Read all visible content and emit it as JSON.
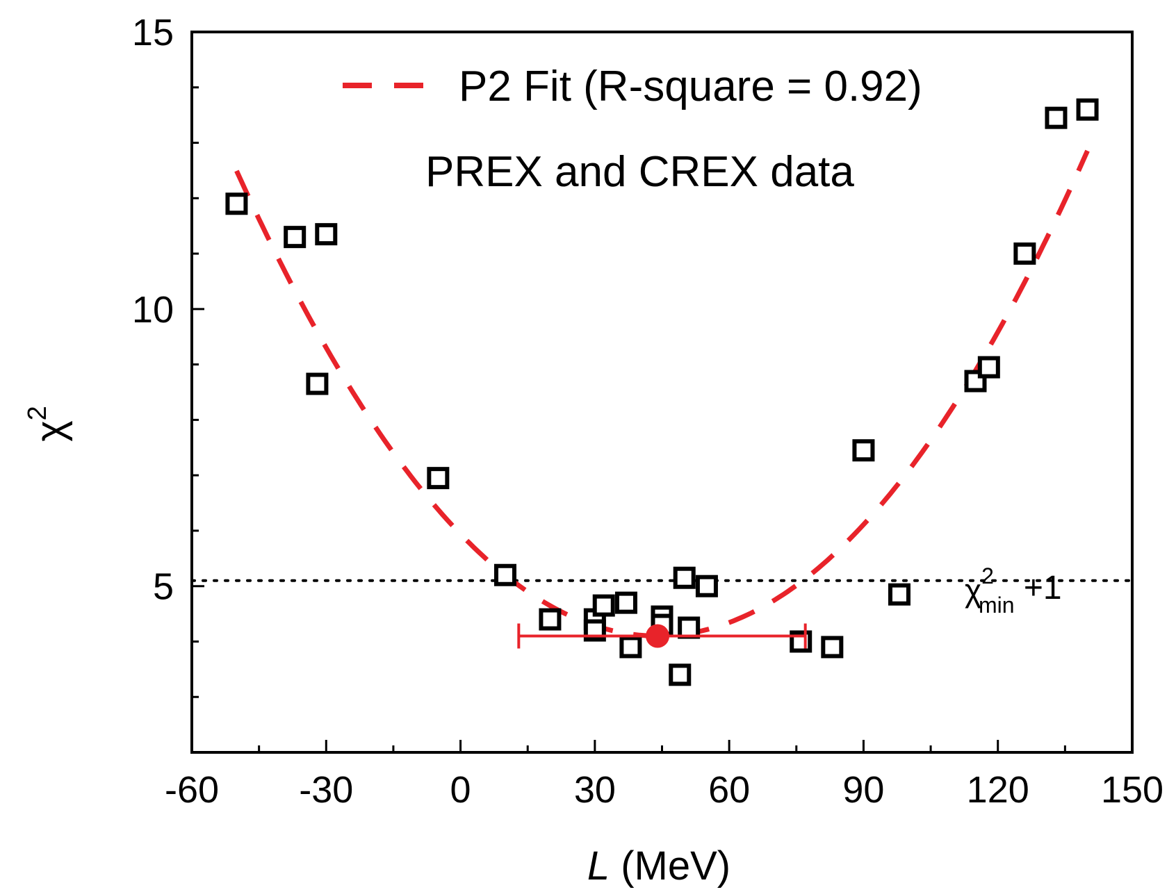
{
  "chart_data": {
    "type": "scatter",
    "xlabel_italic": "L",
    "xlabel_rest": " (MeV)",
    "ylabel_base": "χ",
    "ylabel_sup": "2",
    "xlim": [
      -60,
      150
    ],
    "ylim": [
      2,
      15
    ],
    "x_ticks": [
      -60,
      -30,
      0,
      30,
      60,
      90,
      120,
      150
    ],
    "y_ticks": [
      5,
      10,
      15
    ],
    "legend": {
      "label": "P2 Fit (R-square = 0.92)",
      "position": "top-center"
    },
    "note": "PREX and CREX data",
    "points": [
      {
        "x": -50,
        "y": 11.9
      },
      {
        "x": -37,
        "y": 11.3
      },
      {
        "x": -30,
        "y": 11.35
      },
      {
        "x": -32,
        "y": 8.65
      },
      {
        "x": -5,
        "y": 6.95
      },
      {
        "x": 10,
        "y": 5.2
      },
      {
        "x": 20,
        "y": 4.4
      },
      {
        "x": 30,
        "y": 4.4
      },
      {
        "x": 30,
        "y": 4.2
      },
      {
        "x": 32,
        "y": 4.65
      },
      {
        "x": 37,
        "y": 4.7
      },
      {
        "x": 38,
        "y": 3.9
      },
      {
        "x": 45,
        "y": 4.45
      },
      {
        "x": 45,
        "y": 4.3
      },
      {
        "x": 49,
        "y": 3.4
      },
      {
        "x": 50,
        "y": 5.15
      },
      {
        "x": 51,
        "y": 4.25
      },
      {
        "x": 55,
        "y": 5.0
      },
      {
        "x": 76,
        "y": 4.0
      },
      {
        "x": 83,
        "y": 3.9
      },
      {
        "x": 90,
        "y": 7.45
      },
      {
        "x": 98,
        "y": 4.85
      },
      {
        "x": 115,
        "y": 8.7
      },
      {
        "x": 118,
        "y": 8.95
      },
      {
        "x": 126,
        "y": 11.0
      },
      {
        "x": 133,
        "y": 13.45
      },
      {
        "x": 140,
        "y": 13.6
      }
    ],
    "fit": {
      "vertex_x": 44,
      "vertex_y": 4.1,
      "a": 0.00095,
      "x_range": [
        -50,
        140
      ]
    },
    "best_fit": {
      "x": 44,
      "y": 4.1,
      "xerr_low": 13,
      "xerr_high": 77
    },
    "threshold": {
      "y": 5.1,
      "label_base": "χ",
      "label_sup": "2",
      "label_sub": "min",
      "label_suffix": " +1"
    },
    "colors": {
      "fit": "#e8232a",
      "marker": "#000000",
      "best_fit": "#e8232a"
    }
  }
}
